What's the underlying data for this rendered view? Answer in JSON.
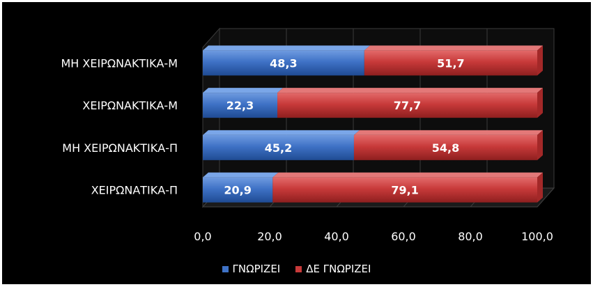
{
  "chart_data": {
    "type": "bar",
    "orientation": "horizontal",
    "stacked": true,
    "categories": [
      "ΜΗ ΧΕΙΡΩΝΑΚΤΙΚΑ-Μ",
      "ΧΕΙΡΩΝΑΚΤΙΚΑ-Μ",
      "ΜΗ ΧΕΙΡΩΝΑΚΤΙΚΑ-Π",
      "ΧΕΙΡΩΝΑΤΙΚΑ-Π"
    ],
    "series": [
      {
        "name": "ΓΝΩΡΙΖΕΙ",
        "values": [
          48.3,
          22.3,
          45.2,
          20.9
        ],
        "labels": [
          "48,3",
          "22,3",
          "45,2",
          "20,9"
        ],
        "color": "#3f72c6"
      },
      {
        "name": "ΔΕ ΓΝΩΡΙΖΕΙ",
        "values": [
          51.7,
          77.7,
          54.8,
          79.1
        ],
        "labels": [
          "51,7",
          "77,7",
          "54,8",
          "79,1"
        ],
        "color": "#c83a3a"
      }
    ],
    "xlim": [
      0,
      100
    ],
    "xticks": [
      0,
      20,
      40,
      60,
      80,
      100
    ],
    "xtick_labels": [
      "0,0",
      "20,0",
      "40,0",
      "60,0",
      "80,0",
      "100,0"
    ],
    "grid": true,
    "legend_position": "bottom",
    "background": "#000000"
  },
  "legend": {
    "items": [
      {
        "label": "ΓΝΩΡΙΖΕΙ",
        "color": "#3f72c6"
      },
      {
        "label": "ΔΕ ΓΝΩΡΙΖΕΙ",
        "color": "#c83a3a"
      }
    ]
  }
}
